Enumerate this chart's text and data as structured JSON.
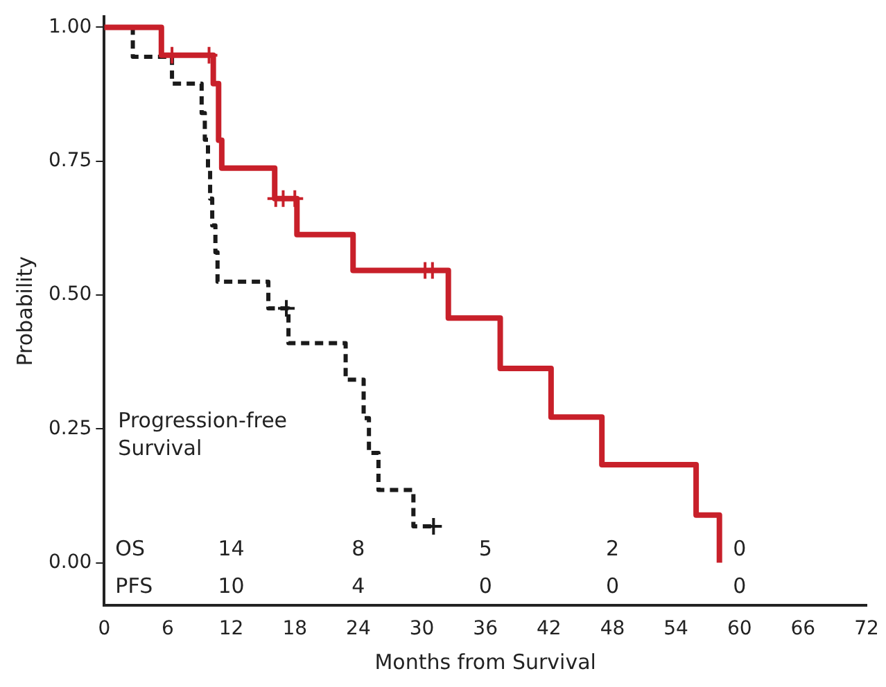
{
  "chart_data": {
    "type": "step",
    "xlabel": "Months from Survival",
    "ylabel": "Probability",
    "xlim": [
      0,
      72
    ],
    "xticks": [
      0,
      6,
      12,
      18,
      24,
      30,
      36,
      42,
      48,
      54,
      60,
      66,
      72
    ],
    "ylim": [
      -0.08,
      1.02
    ],
    "yticks": [
      {
        "value": 0,
        "label": "0.00"
      },
      {
        "value": 0.25,
        "label": "0.25"
      },
      {
        "value": 0.5,
        "label": "0.50"
      },
      {
        "value": 0.75,
        "label": "0.75"
      },
      {
        "value": 1,
        "label": "1.00"
      }
    ],
    "grid": false,
    "legend": false,
    "series": [
      {
        "color": "#c8202a",
        "line_style": "solid",
        "marker": "none",
        "x": [
          0,
          5.4,
          10.3,
          10.8,
          11.1,
          16.1,
          18.2,
          23.5,
          32.5,
          37.4,
          42.2,
          47,
          55.9,
          58.1
        ],
        "values": [
          1,
          0.948,
          0.895,
          0.789,
          0.737,
          0.68,
          0.613,
          0.546,
          0.457,
          0.363,
          0.272,
          0.183,
          0.089,
          0
        ]
      },
      {
        "color": "#1a1a1a",
        "line_style": "dashed",
        "marker": "none",
        "x": [
          0,
          2.7,
          6.4,
          9.2,
          9.5,
          9.8,
          10.0,
          10.2,
          10.5,
          10.7,
          15.5,
          17.4,
          22.8,
          24.5,
          25.0,
          25.9,
          29.2,
          31.1
        ],
        "values": [
          1,
          0.945,
          0.895,
          0.84,
          0.79,
          0.735,
          0.68,
          0.63,
          0.58,
          0.525,
          0.475,
          0.41,
          0.342,
          0.27,
          0.205,
          0.136,
          0.068,
          0.068
        ]
      },
      {
        "type": "scatter",
        "color": "#c8202a",
        "marker": "cross",
        "x": [
          6.4,
          9.9,
          16.2,
          16.9,
          18.0,
          30.3,
          31.0
        ],
        "values": [
          0.948,
          0.948,
          0.68,
          0.68,
          0.68,
          0.546,
          0.546
        ]
      },
      {
        "type": "scatter",
        "color": "#1a1a1a",
        "marker": "cross",
        "x": [
          17.2,
          31.1
        ],
        "values": [
          0.475,
          0.068
        ]
      }
    ],
    "annotations": [
      "Progression-free Survival",
      "OS",
      "14",
      "8",
      "5",
      "2",
      "0",
      "PFS",
      "10",
      "4",
      "0",
      "0",
      "0"
    ]
  }
}
